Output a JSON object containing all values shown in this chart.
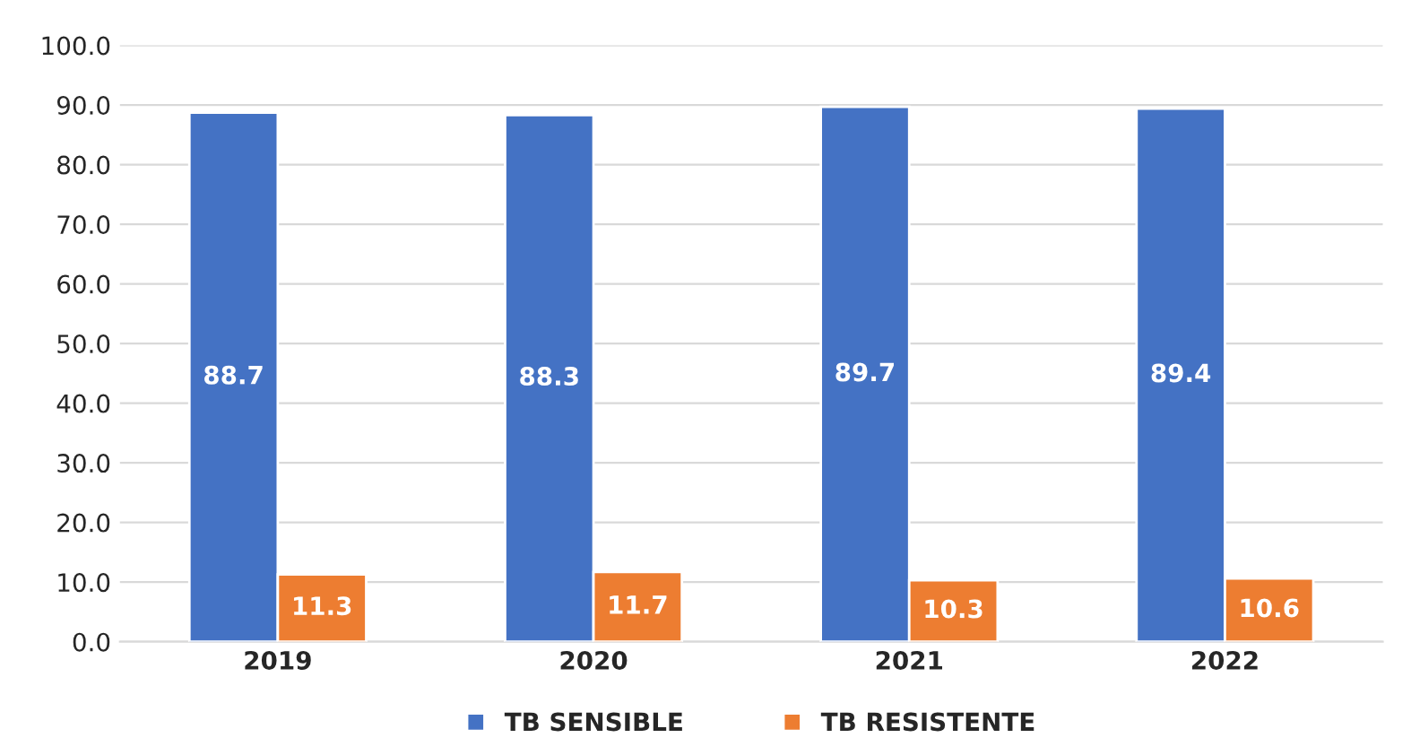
{
  "chart_data": {
    "type": "bar",
    "categories": [
      "2019",
      "2020",
      "2021",
      "2022"
    ],
    "series": [
      {
        "name": "TB SENSIBLE",
        "color": "#4472c4",
        "values": [
          88.7,
          88.3,
          89.7,
          89.4
        ]
      },
      {
        "name": "TB RESISTENTE",
        "color": "#ed7d31",
        "values": [
          11.3,
          11.7,
          10.3,
          10.6
        ]
      }
    ],
    "ylim": [
      0,
      100
    ],
    "yticks": [
      {
        "value": 0,
        "label": "0.0"
      },
      {
        "value": 10,
        "label": "10.0"
      },
      {
        "value": 20,
        "label": "20.0"
      },
      {
        "value": 30,
        "label": "30.0"
      },
      {
        "value": 40,
        "label": "40.0"
      },
      {
        "value": 50,
        "label": "50.0"
      },
      {
        "value": 60,
        "label": "60.0"
      },
      {
        "value": 70,
        "label": "70.0"
      },
      {
        "value": 80,
        "label": "80.0"
      },
      {
        "value": 90,
        "label": "90.0"
      },
      {
        "value": 100,
        "label": "100.0"
      }
    ],
    "grid": "y",
    "legend": "bottom",
    "data_labels": true
  }
}
